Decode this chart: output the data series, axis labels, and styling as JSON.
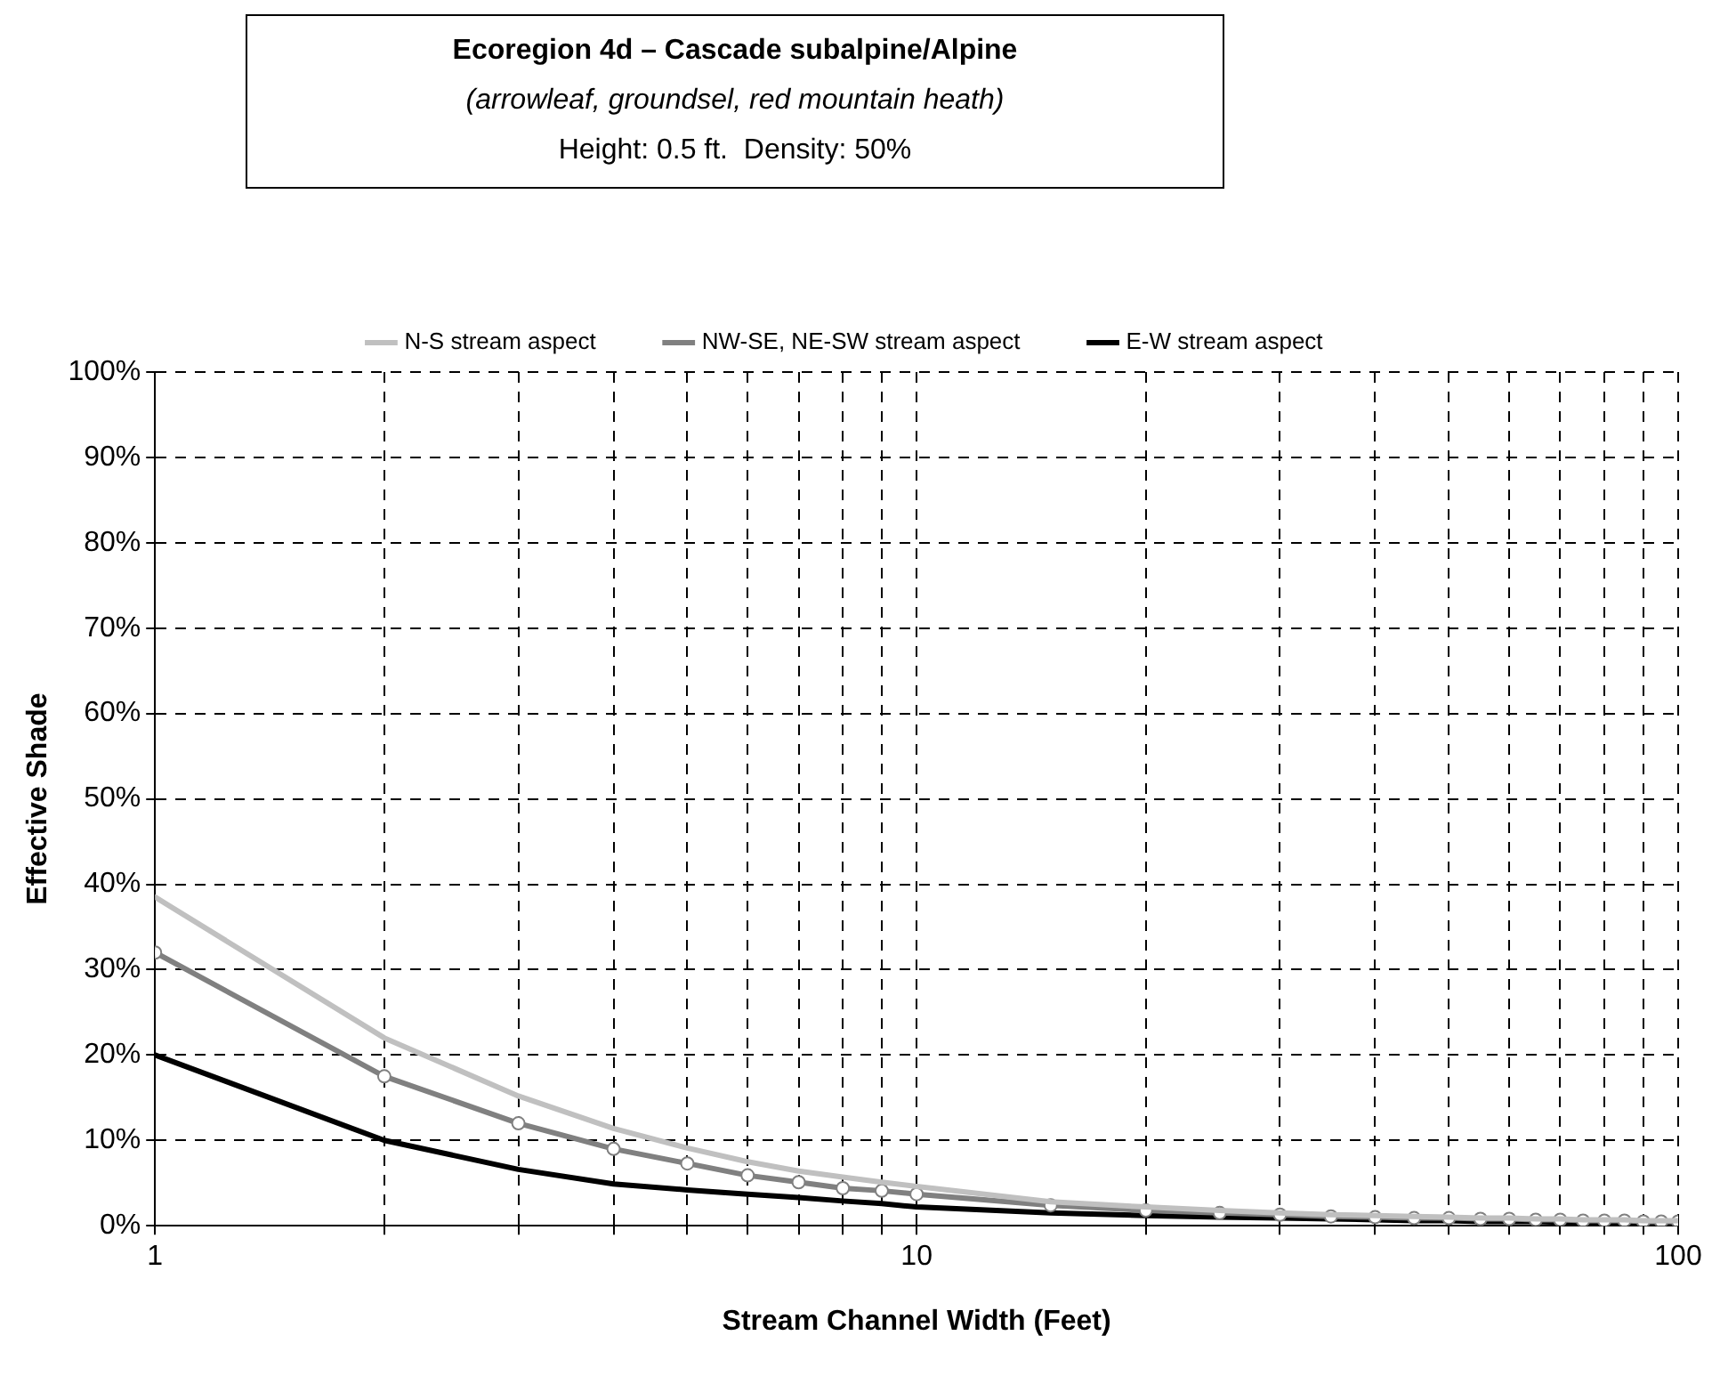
{
  "chart_data": {
    "type": "line",
    "title": "Ecoregion 4d – Cascade subalpine/Alpine",
    "subtitle": "(arrowleaf, groundsel, red mountain heath)",
    "annotations": [
      "Height: 0.5 ft.  Density: 50%"
    ],
    "xlabel": "Stream Channel Width (Feet)",
    "ylabel": "Effective Shade",
    "x": [
      1,
      2,
      3,
      4,
      5,
      6,
      7,
      8,
      9,
      10,
      15,
      20,
      25,
      30,
      35,
      40,
      45,
      50,
      55,
      60,
      65,
      70,
      75,
      80,
      85,
      90,
      95,
      100
    ],
    "series": [
      {
        "name": "N-S stream aspect",
        "color": "#c0c0c0",
        "marker": "none",
        "values": [
          38.5,
          22,
          15.2,
          11.4,
          9.1,
          7.5,
          6.4,
          5.7,
          5.1,
          4.6,
          2.8,
          2.2,
          1.8,
          1.5,
          1.3,
          1.2,
          1.1,
          1.0,
          0.9,
          0.9,
          0.8,
          0.8,
          0.7,
          0.7,
          0.7,
          0.6,
          0.6,
          0.6
        ]
      },
      {
        "name": "NW-SE, NE-SW stream aspect",
        "color": "#808080",
        "marker": "circle",
        "values": [
          32,
          17.5,
          12,
          9,
          7.3,
          5.9,
          5.1,
          4.4,
          4.1,
          3.7,
          2.4,
          1.8,
          1.5,
          1.3,
          1.1,
          1.0,
          0.9,
          0.9,
          0.8,
          0.8,
          0.7,
          0.7,
          0.6,
          0.6,
          0.6,
          0.5,
          0.5,
          0.5
        ]
      },
      {
        "name": "E-W stream aspect",
        "color": "#000000",
        "marker": "none",
        "values": [
          20,
          10,
          6.6,
          4.9,
          4.2,
          3.7,
          3.3,
          2.9,
          2.6,
          2.2,
          1.5,
          1.2,
          1.0,
          0.9,
          0.8,
          0.7,
          0.6,
          0.6,
          0.5,
          0.5,
          0.5,
          0.4,
          0.4,
          0.4,
          0.3,
          0.3,
          0.3,
          0.3
        ]
      }
    ],
    "log": "x",
    "xlim": [
      1,
      100
    ],
    "xticks": [
      1,
      {
        "value": 2,
        "label": null
      },
      {
        "value": 3,
        "label": null
      },
      {
        "value": 4,
        "label": null
      },
      {
        "value": 5,
        "label": null
      },
      {
        "value": 6,
        "label": null
      },
      {
        "value": 7,
        "label": null
      },
      {
        "value": 8,
        "label": null
      },
      {
        "value": 9,
        "label": null
      },
      10,
      {
        "value": 20,
        "label": null
      },
      {
        "value": 30,
        "label": null
      },
      {
        "value": 40,
        "label": null
      },
      {
        "value": 50,
        "label": null
      },
      {
        "value": 60,
        "label": null
      },
      {
        "value": 70,
        "label": null
      },
      {
        "value": 80,
        "label": null
      },
      {
        "value": 90,
        "label": null
      },
      100
    ],
    "ylim": [
      0,
      100
    ],
    "yticks": [
      {
        "value": 0,
        "label": "0%"
      },
      {
        "value": 10,
        "label": "10%"
      },
      {
        "value": 20,
        "label": "20%"
      },
      {
        "value": 30,
        "label": "30%"
      },
      {
        "value": 40,
        "label": "40%"
      },
      {
        "value": 50,
        "label": "50%"
      },
      {
        "value": 60,
        "label": "60%"
      },
      {
        "value": 70,
        "label": "70%"
      },
      {
        "value": 80,
        "label": "80%"
      },
      {
        "value": 90,
        "label": "90%"
      },
      {
        "value": 100,
        "label": "100%"
      }
    ],
    "grid": true,
    "legend": "top",
    "line_style": "solid"
  }
}
